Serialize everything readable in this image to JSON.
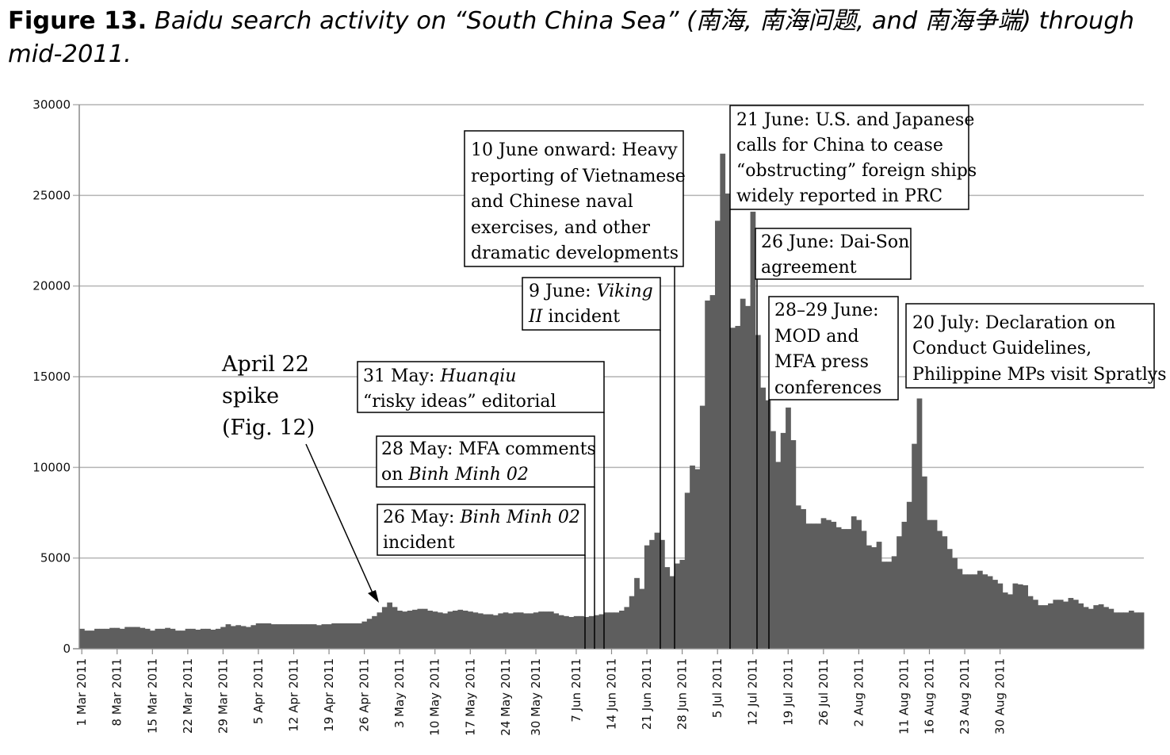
{
  "caption": {
    "label": "Figure 13.",
    "text": "Baidu search activity on “South China Sea” (南海, 南海问题, and 南海争端) through mid-2011."
  },
  "chart_data": {
    "type": "bar",
    "title": "",
    "xlabel": "",
    "ylabel": "",
    "ylim": [
      0,
      30000
    ],
    "yticks": [
      0,
      5000,
      10000,
      15000,
      20000,
      25000,
      30000
    ],
    "grid": true,
    "legend": "none",
    "bar_color": "#5e5e5e",
    "x_start": "2011-03-01",
    "x_end": "2011-08-31",
    "xtick_labels": [
      "1 Mar 2011",
      "8 Mar 2011",
      "15 Mar 2011",
      "22 Mar 2011",
      "29 Mar 2011",
      "5 Apr 2011",
      "12 Apr 2011",
      "19 Apr 2011",
      "26 Apr 2011",
      "3 May 2011",
      "10 May 2011",
      "17 May 2011",
      "24 May 2011",
      "30 May 2011",
      "7 Jun 2011",
      "14 Jun 2011",
      "21 Jun 2011",
      "28 Jun 2011",
      "5 Jul 2011",
      "12 Jul 2011",
      "19 Jul 2011",
      "26 Jul 2011",
      "2 Aug 2011",
      "11 Aug 2011",
      "16 Aug 2011",
      "23 Aug 2011",
      "30 Aug 2011"
    ],
    "values": [
      1100,
      1000,
      1000,
      1100,
      1100,
      1100,
      1150,
      1150,
      1100,
      1200,
      1200,
      1200,
      1150,
      1100,
      1000,
      1100,
      1100,
      1150,
      1100,
      1000,
      1000,
      1100,
      1100,
      1050,
      1100,
      1100,
      1050,
      1100,
      1200,
      1350,
      1250,
      1300,
      1250,
      1200,
      1300,
      1400,
      1400,
      1400,
      1350,
      1350,
      1350,
      1350,
      1350,
      1350,
      1350,
      1350,
      1350,
      1300,
      1350,
      1350,
      1400,
      1400,
      1400,
      1400,
      1400,
      1400,
      1500,
      1650,
      1800,
      2000,
      2300,
      2550,
      2300,
      2100,
      2050,
      2100,
      2150,
      2200,
      2200,
      2100,
      2050,
      2000,
      1950,
      2050,
      2100,
      2150,
      2100,
      2050,
      2000,
      1950,
      1900,
      1900,
      1850,
      1950,
      2000,
      1950,
      2000,
      2000,
      1950,
      1950,
      2000,
      2050,
      2050,
      2050,
      1950,
      1850,
      1800,
      1750,
      1800,
      1800,
      1750,
      1800,
      1850,
      1900,
      2000,
      2000,
      2000,
      2100,
      2300,
      2900,
      3900,
      3300,
      5700,
      6000,
      6400,
      6000,
      4500,
      4000,
      4700,
      4900,
      8600,
      10100,
      9900,
      13400,
      19200,
      19500,
      23600,
      27300,
      25100,
      17700,
      17800,
      19300,
      18900,
      24100,
      17300,
      14400,
      13700,
      12000,
      10300,
      11900,
      13300,
      11500,
      7900,
      7700,
      6900,
      6900,
      6900,
      7200,
      7100,
      7000,
      6700,
      6600,
      6600,
      7300,
      7100,
      6500,
      5700,
      5600,
      5900,
      4800,
      4800,
      5100,
      6200,
      7000,
      8100,
      11300,
      13800,
      9500,
      7100,
      7100,
      6500,
      6200,
      5500,
      5000,
      4400,
      4100,
      4100,
      4100,
      4300,
      4100,
      4000,
      3800,
      3600,
      3100,
      3000,
      3600,
      3550,
      3500,
      2900,
      2700,
      2400,
      2400,
      2500,
      2700,
      2700,
      2600,
      2800,
      2700,
      2500,
      2300,
      2200,
      2400,
      2450,
      2300,
      2200,
      2000,
      2000,
      2000,
      2100,
      2000,
      2000
    ]
  },
  "annotations": [
    {
      "line1": "April 22",
      "line2": "spike",
      "line3": "(Fig. 12)"
    },
    {
      "line1_pre": "26 May: ",
      "line1_em": "Binh Minh 02",
      "line2": "incident"
    },
    {
      "line1": "28 May: MFA comments",
      "line2_pre": "on ",
      "line2_em": "Binh Minh 02"
    },
    {
      "line1_pre": "31 May: ",
      "line1_em": "Huanqiu",
      "line2": "“risky ideas” editorial"
    },
    {
      "line1_pre": "9 June: ",
      "line1_em": "Viking",
      "line2_em": "II",
      "line2": " incident"
    },
    {
      "lines": [
        "10 June onward: Heavy",
        "reporting of Vietnamese",
        "and Chinese naval",
        "exercises, and other",
        "dramatic developments"
      ]
    },
    {
      "lines": [
        "21 June: U.S. and Japanese",
        "calls for China to cease",
        "“obstructing” foreign ships",
        "widely reported in PRC"
      ]
    },
    {
      "lines": [
        "26 June: Dai-Son",
        "agreement"
      ]
    },
    {
      "lines": [
        "28–29 June:",
        "MOD and",
        "MFA press",
        "conferences"
      ]
    },
    {
      "lines": [
        "20 July: Declaration on",
        "Conduct Guidelines,",
        "Philippine MPs visit Spratlys"
      ]
    }
  ]
}
